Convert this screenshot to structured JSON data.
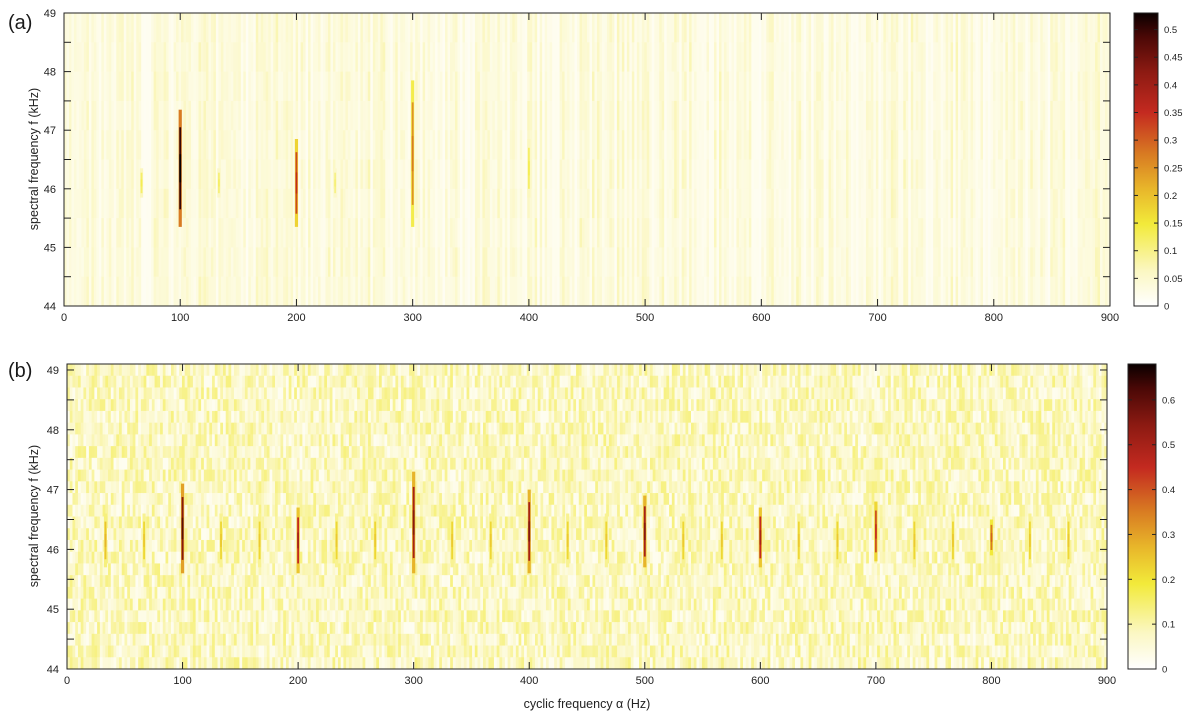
{
  "chart_data": [
    {
      "panel": "(a)",
      "type": "heatmap",
      "xlabel": "",
      "ylabel": "spectral frequency f (kHz)",
      "xlim": [
        0,
        900
      ],
      "ylim": [
        44,
        49
      ],
      "x_ticks": [
        0,
        100,
        200,
        300,
        400,
        500,
        600,
        700,
        800,
        900
      ],
      "y_ticks": [
        44,
        45,
        46,
        47,
        48,
        49
      ],
      "colorbar": {
        "range": [
          0,
          0.53
        ],
        "ticks": [
          0,
          0.05,
          0.1,
          0.15,
          0.2,
          0.25,
          0.3,
          0.35,
          0.4,
          0.45,
          0.5
        ],
        "colormap": "hot-reversed"
      },
      "background_level": 0.05,
      "peaks": [
        {
          "alpha": 100,
          "f_from": 45.35,
          "f_to": 47.35,
          "value": 0.5
        },
        {
          "alpha": 200,
          "f_from": 45.35,
          "f_to": 46.85,
          "value": 0.32
        },
        {
          "alpha": 300,
          "f_from": 45.35,
          "f_to": 47.85,
          "value": 0.25
        },
        {
          "alpha": 400,
          "f_from": 45.85,
          "f_to": 46.85,
          "value": 0.12
        },
        {
          "alpha": 66.7,
          "f_from": 45.85,
          "f_to": 46.35,
          "value": 0.12
        },
        {
          "alpha": 133.3,
          "f_from": 45.85,
          "f_to": 46.35,
          "value": 0.11
        },
        {
          "alpha": 233.3,
          "f_from": 45.85,
          "f_to": 46.35,
          "value": 0.1
        }
      ]
    },
    {
      "panel": "(b)",
      "type": "heatmap",
      "xlabel": "cyclic frequency α (Hz)",
      "ylabel": "spectral frequency f (kHz)",
      "xlim": [
        0,
        900
      ],
      "ylim": [
        44,
        49.1
      ],
      "x_ticks": [
        0,
        100,
        200,
        300,
        400,
        500,
        600,
        700,
        800,
        900
      ],
      "y_ticks": [
        44,
        45,
        46,
        47,
        48,
        49
      ],
      "colorbar": {
        "range": [
          0,
          0.68
        ],
        "ticks": [
          0,
          0.1,
          0.2,
          0.3,
          0.4,
          0.5,
          0.6
        ],
        "colormap": "hot-reversed"
      },
      "background_level": 0.09,
      "peaks": [
        {
          "alpha": 33.3,
          "f_from": 45.7,
          "f_to": 46.6,
          "value": 0.25
        },
        {
          "alpha": 66.7,
          "f_from": 45.7,
          "f_to": 46.6,
          "value": 0.22
        },
        {
          "alpha": 100,
          "f_from": 45.6,
          "f_to": 47.1,
          "value": 0.55
        },
        {
          "alpha": 133.3,
          "f_from": 45.7,
          "f_to": 46.6,
          "value": 0.22
        },
        {
          "alpha": 166.7,
          "f_from": 45.7,
          "f_to": 46.6,
          "value": 0.22
        },
        {
          "alpha": 200,
          "f_from": 45.6,
          "f_to": 46.7,
          "value": 0.45
        },
        {
          "alpha": 233.3,
          "f_from": 45.7,
          "f_to": 46.6,
          "value": 0.22
        },
        {
          "alpha": 266.7,
          "f_from": 45.7,
          "f_to": 46.6,
          "value": 0.22
        },
        {
          "alpha": 300,
          "f_from": 45.6,
          "f_to": 47.3,
          "value": 0.5
        },
        {
          "alpha": 333.3,
          "f_from": 45.7,
          "f_to": 46.6,
          "value": 0.22
        },
        {
          "alpha": 366.7,
          "f_from": 45.7,
          "f_to": 46.6,
          "value": 0.22
        },
        {
          "alpha": 400,
          "f_from": 45.6,
          "f_to": 47.0,
          "value": 0.5
        },
        {
          "alpha": 433.3,
          "f_from": 45.7,
          "f_to": 46.6,
          "value": 0.22
        },
        {
          "alpha": 466.7,
          "f_from": 45.7,
          "f_to": 46.6,
          "value": 0.22
        },
        {
          "alpha": 500,
          "f_from": 45.7,
          "f_to": 46.9,
          "value": 0.5
        },
        {
          "alpha": 533.3,
          "f_from": 45.7,
          "f_to": 46.6,
          "value": 0.22
        },
        {
          "alpha": 566.7,
          "f_from": 45.7,
          "f_to": 46.6,
          "value": 0.22
        },
        {
          "alpha": 600,
          "f_from": 45.7,
          "f_to": 46.7,
          "value": 0.45
        },
        {
          "alpha": 633.3,
          "f_from": 45.7,
          "f_to": 46.6,
          "value": 0.22
        },
        {
          "alpha": 666.7,
          "f_from": 45.7,
          "f_to": 46.6,
          "value": 0.22
        },
        {
          "alpha": 700,
          "f_from": 45.8,
          "f_to": 46.8,
          "value": 0.4
        },
        {
          "alpha": 733.3,
          "f_from": 45.7,
          "f_to": 46.6,
          "value": 0.22
        },
        {
          "alpha": 766.7,
          "f_from": 45.7,
          "f_to": 46.6,
          "value": 0.22
        },
        {
          "alpha": 800,
          "f_from": 45.9,
          "f_to": 46.5,
          "value": 0.35
        },
        {
          "alpha": 833.3,
          "f_from": 45.7,
          "f_to": 46.6,
          "value": 0.22
        },
        {
          "alpha": 866.7,
          "f_from": 45.7,
          "f_to": 46.6,
          "value": 0.22
        }
      ]
    }
  ]
}
